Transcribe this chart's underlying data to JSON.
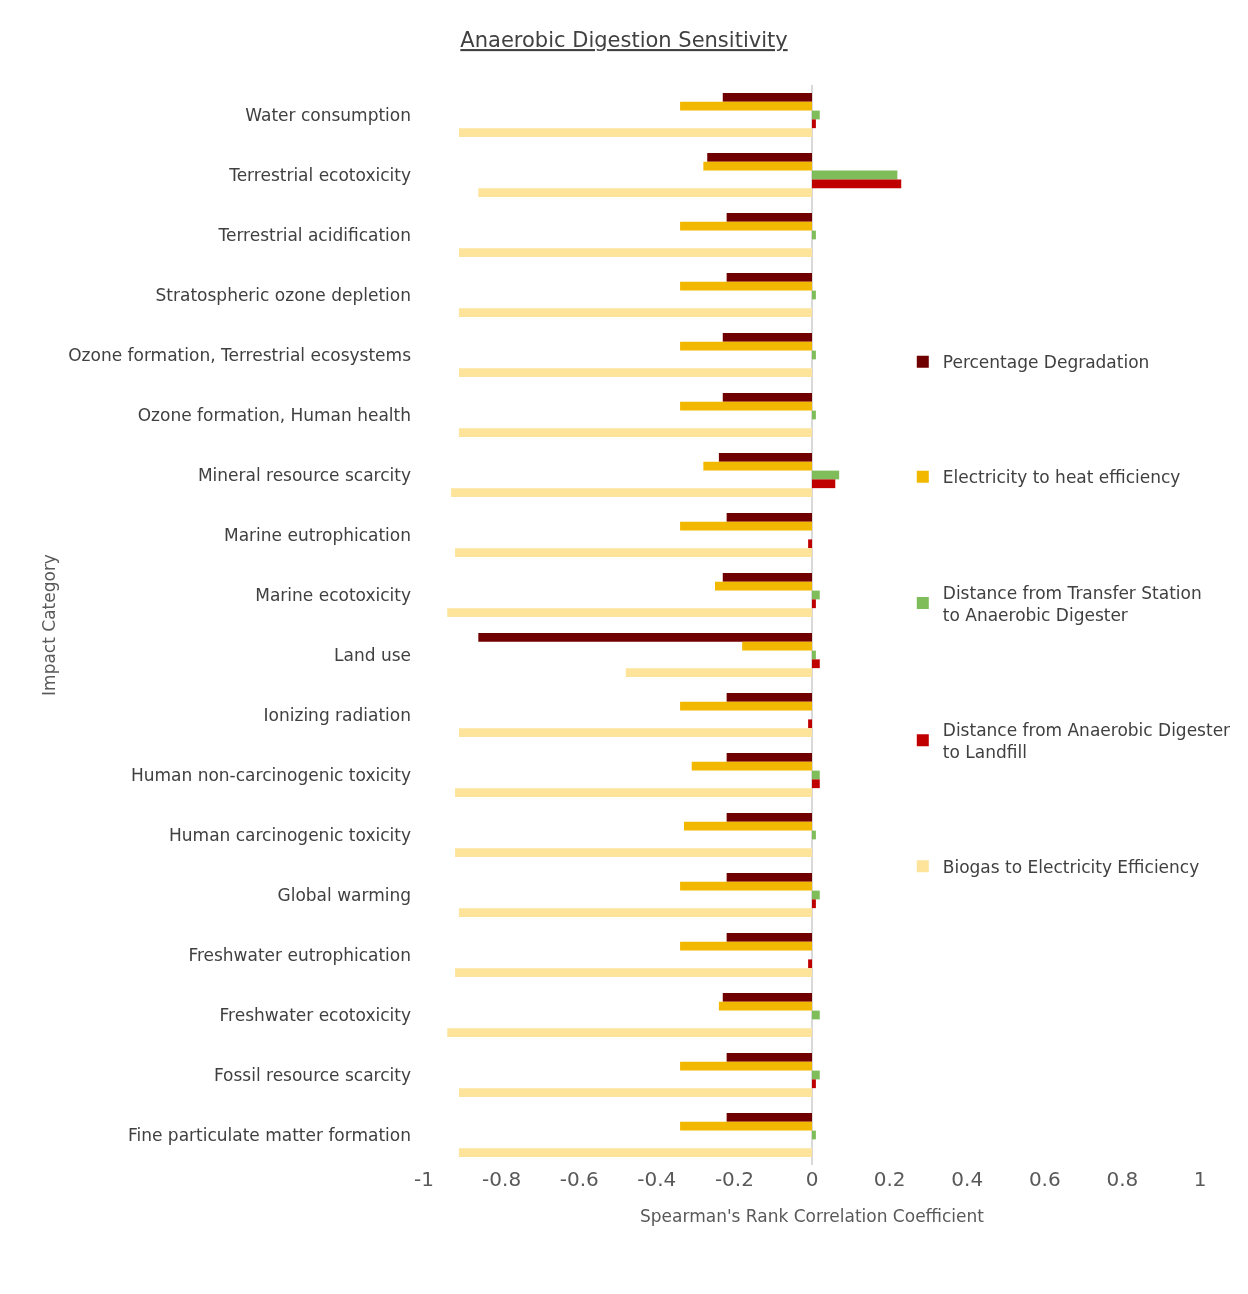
{
  "chart_data": {
    "type": "bar",
    "orientation": "horizontal",
    "title": "Anaerobic Digestion Sensitivity",
    "xlabel": "Spearman's Rank Correlation Coefficient",
    "ylabel": "Impact Category",
    "categories": [
      "Water consumption",
      "Terrestrial ecotoxicity",
      "Terrestrial acidification",
      "Stratospheric ozone depletion",
      "Ozone formation, Terrestrial ecosystems",
      "Ozone formation, Human health",
      "Mineral resource scarcity",
      "Marine eutrophication",
      "Marine ecotoxicity",
      "Land use",
      "Ionizing radiation",
      "Human non-carcinogenic toxicity",
      "Human carcinogenic toxicity",
      "Global warming",
      "Freshwater eutrophication",
      "Freshwater ecotoxicity",
      "Fossil resource scarcity",
      "Fine particulate matter formation"
    ],
    "series": [
      {
        "name": "Percentage Degradation",
        "color": "#700000",
        "values": [
          -0.23,
          -0.27,
          -0.22,
          -0.22,
          -0.23,
          -0.23,
          -0.24,
          -0.22,
          -0.23,
          -0.86,
          -0.22,
          -0.22,
          -0.22,
          -0.22,
          -0.22,
          -0.23,
          -0.22,
          -0.22
        ]
      },
      {
        "name": "Electricity to heat efficiency",
        "color": "#f2b800",
        "values": [
          -0.34,
          -0.28,
          -0.34,
          -0.34,
          -0.34,
          -0.34,
          -0.28,
          -0.34,
          -0.25,
          -0.18,
          -0.34,
          -0.31,
          -0.33,
          -0.34,
          -0.34,
          -0.24,
          -0.34,
          -0.34
        ]
      },
      {
        "name": "Distance from Transfer Station to Anaerobic Digester",
        "color": "#7fbc5a",
        "values": [
          0.02,
          0.22,
          0.01,
          0.01,
          0.01,
          0.01,
          0.07,
          0.0,
          0.02,
          0.01,
          0.0,
          0.02,
          0.01,
          0.02,
          0.0,
          0.02,
          0.02,
          0.01
        ]
      },
      {
        "name": "Distance from Anaerobic Digester to Landfill",
        "color": "#c00000",
        "values": [
          0.01,
          0.23,
          0.0,
          0.0,
          0.0,
          0.0,
          0.06,
          -0.01,
          0.01,
          0.02,
          -0.01,
          0.02,
          0.0,
          0.01,
          -0.01,
          0.0,
          0.01,
          0.0
        ]
      },
      {
        "name": "Biogas to Electricity Efficiency",
        "color": "#fde49a",
        "values": [
          -0.91,
          -0.86,
          -0.91,
          -0.91,
          -0.91,
          -0.91,
          -0.93,
          -0.92,
          -0.94,
          -0.48,
          -0.91,
          -0.92,
          -0.92,
          -0.91,
          -0.92,
          -0.94,
          -0.91,
          -0.91
        ]
      }
    ],
    "xlim": [
      -1,
      1
    ],
    "xticks": [
      -1,
      -0.8,
      -0.6,
      -0.4,
      -0.2,
      0,
      0.2,
      0.4,
      0.6,
      0.8,
      1
    ],
    "legend": "right"
  }
}
